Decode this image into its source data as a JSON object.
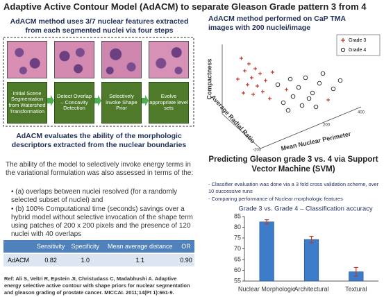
{
  "title": "Adaptive Active Contour Model (AdACM) to separate Gleason Grade pattern 3 from 4",
  "left": {
    "heading": "AdACM method uses 3/7 nuclear features extracted from each segmented nuclei via four steps",
    "steps": [
      "Initial Scene Segmentation from Watershed Transformation",
      "Detect Overlap – Concavity Detection",
      "Selectively invoke Shape Prior",
      "Evolve appropriate level sets"
    ],
    "subheading": "AdACM evaluates the ability of the morphologic descriptors extracted from the nuclear boundaries",
    "paragraph": "The ability of the model to selectively invoke energy terms in the variational formulation was also assessed in terms of the:",
    "bullets": [
      "(a) overlaps between nuclei resolved (for a randomly selected subset of nuclei) and",
      "(b) 100% Computational time (seconds) savings over a hybrid model without selective invocation of the shape term using patches of 200 x 200 pixels and the presence of 120 nuclei with 40 overlaps"
    ],
    "table": {
      "header": [
        "Sensitivity",
        "Specificity",
        "Mean average distance",
        "OR"
      ],
      "rows": [
        [
          "AdACM",
          "0.82",
          "1.0",
          "1.1",
          "0.90"
        ]
      ]
    },
    "reference": "Ref: Ali S, Veltri R, Epstein JI, Christudass C, Madabhushi A. Adaptive energy selective active contour with shape priors for nuclear segmentation and gleason grading of prostate cancer. MICCAI. 2011;14(Pt 1):661-9."
  },
  "scatter": {
    "heading": "AdACM method performed on CaP TMA images with 200 nuclei/image",
    "legend": [
      "Grade 3",
      "Grade 4"
    ],
    "axis_labels": {
      "z": "Compactness",
      "y": "Average Radial Ratio",
      "x": "Mean Nuclear Perimeter"
    },
    "ticks": [
      "-200",
      "200",
      "400"
    ]
  },
  "svm": {
    "heading": "Predicting Gleason grade 3 vs. 4 via Support Vector Machine (SVM)",
    "bullets": [
      "Classifier evaluation was done via a 3 fold cross validation scheme, over 10 successive runs",
      "Comparing performance of Nuclear morphologic features"
    ]
  },
  "chart_data": {
    "type": "bar",
    "title": "Grade 3 vs. Grade 4 – Classification accuracy",
    "categories": [
      "Nuclear Morphologic",
      "Architectural",
      "Textural"
    ],
    "values": [
      82.5,
      74.3,
      59.3
    ],
    "errors": [
      1,
      1.5,
      2
    ],
    "color": "#3d7cc9",
    "error_color": "#c0392b",
    "ylim": [
      55,
      85
    ],
    "yticks": [
      55,
      60,
      65,
      70,
      75,
      80,
      85
    ]
  }
}
